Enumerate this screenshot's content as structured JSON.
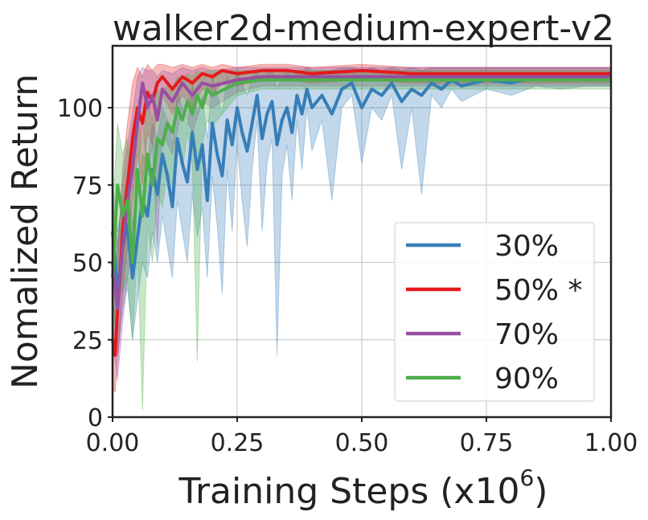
{
  "chart_data": {
    "type": "line",
    "title": "walker2d-medium-expert-v2",
    "xlabel": "Training Steps (x10",
    "xlabel_exp": "6",
    "xlabel_close": ")",
    "ylabel": "Nomalized Return",
    "xlim": [
      0,
      1.0
    ],
    "ylim": [
      0,
      120
    ],
    "xticks": [
      0.0,
      0.25,
      0.5,
      0.75,
      1.0
    ],
    "xtick_labels": [
      "0.00",
      "0.25",
      "0.50",
      "0.75",
      "1.00"
    ],
    "yticks": [
      0,
      25,
      50,
      75,
      100
    ],
    "ytick_labels": [
      "0",
      "25",
      "50",
      "75",
      "100"
    ],
    "grid": true,
    "legend_position": "bottom-right",
    "series": [
      {
        "name": "30%",
        "color": "#377eb8",
        "x": [
          0.0,
          0.01,
          0.02,
          0.03,
          0.04,
          0.05,
          0.06,
          0.07,
          0.08,
          0.09,
          0.1,
          0.11,
          0.12,
          0.13,
          0.14,
          0.15,
          0.16,
          0.17,
          0.18,
          0.19,
          0.2,
          0.21,
          0.22,
          0.23,
          0.24,
          0.25,
          0.26,
          0.27,
          0.28,
          0.29,
          0.3,
          0.31,
          0.32,
          0.33,
          0.34,
          0.35,
          0.36,
          0.37,
          0.38,
          0.39,
          0.4,
          0.42,
          0.44,
          0.46,
          0.48,
          0.5,
          0.52,
          0.54,
          0.56,
          0.58,
          0.6,
          0.62,
          0.64,
          0.66,
          0.68,
          0.7,
          0.75,
          0.8,
          0.85,
          0.9,
          0.95,
          1.0
        ],
        "y": [
          60,
          40,
          55,
          62,
          45,
          58,
          70,
          65,
          80,
          72,
          85,
          78,
          68,
          90,
          82,
          76,
          92,
          80,
          88,
          70,
          95,
          85,
          78,
          96,
          88,
          100,
          92,
          86,
          95,
          104,
          90,
          98,
          102,
          88,
          96,
          100,
          92,
          104,
          98,
          106,
          100,
          104,
          98,
          106,
          108,
          100,
          106,
          104,
          108,
          102,
          106,
          104,
          108,
          106,
          109,
          107,
          109,
          108,
          110,
          109,
          110,
          110
        ],
        "upper": [
          75,
          60,
          70,
          78,
          62,
          75,
          85,
          82,
          95,
          90,
          100,
          96,
          88,
          105,
          100,
          94,
          108,
          98,
          104,
          90,
          110,
          104,
          98,
          110,
          106,
          112,
          108,
          104,
          110,
          112,
          108,
          112,
          112,
          106,
          110,
          112,
          110,
          112,
          112,
          113,
          112,
          112,
          112,
          113,
          113,
          112,
          113,
          112,
          113,
          112,
          113,
          112,
          113,
          113,
          113,
          113,
          113,
          113,
          113,
          113,
          113,
          113
        ],
        "lower": [
          40,
          20,
          35,
          42,
          25,
          38,
          50,
          45,
          60,
          50,
          65,
          55,
          45,
          70,
          60,
          50,
          72,
          58,
          68,
          45,
          78,
          62,
          40,
          80,
          60,
          88,
          70,
          55,
          80,
          96,
          60,
          82,
          90,
          20,
          78,
          88,
          70,
          96,
          80,
          100,
          86,
          96,
          70,
          100,
          104,
          82,
          100,
          96,
          104,
          80,
          100,
          72,
          104,
          100,
          106,
          102,
          106,
          104,
          107,
          106,
          107,
          107
        ]
      },
      {
        "name": "50% *",
        "color": "#e41a1c",
        "x": [
          0.0,
          0.005,
          0.01,
          0.015,
          0.02,
          0.03,
          0.04,
          0.05,
          0.06,
          0.07,
          0.08,
          0.09,
          0.1,
          0.12,
          0.14,
          0.16,
          0.18,
          0.2,
          0.22,
          0.25,
          0.3,
          0.35,
          0.4,
          0.5,
          0.6,
          0.7,
          0.8,
          0.9,
          1.0
        ],
        "y": [
          25,
          20,
          35,
          45,
          60,
          75,
          90,
          100,
          95,
          105,
          102,
          108,
          110,
          106,
          110,
          108,
          111,
          110,
          112,
          111,
          112,
          112,
          111,
          112,
          111,
          111,
          111,
          111,
          111
        ],
        "upper": [
          45,
          40,
          55,
          65,
          80,
          95,
          108,
          113,
          110,
          114,
          112,
          114,
          114,
          113,
          114,
          113,
          114,
          113,
          114,
          113,
          114,
          114,
          113,
          114,
          113,
          113,
          113,
          113,
          113
        ],
        "lower": [
          10,
          8,
          18,
          28,
          40,
          55,
          70,
          85,
          75,
          92,
          88,
          100,
          104,
          98,
          104,
          100,
          106,
          104,
          108,
          107,
          109,
          109,
          108,
          109,
          108,
          108,
          108,
          108,
          108
        ]
      },
      {
        "name": "70%",
        "color": "#984ea3",
        "x": [
          0.0,
          0.01,
          0.02,
          0.03,
          0.04,
          0.05,
          0.06,
          0.07,
          0.08,
          0.09,
          0.1,
          0.12,
          0.14,
          0.16,
          0.18,
          0.2,
          0.25,
          0.3,
          0.4,
          0.5,
          0.6,
          0.7,
          0.8,
          0.9,
          1.0
        ],
        "y": [
          50,
          35,
          55,
          70,
          80,
          95,
          108,
          100,
          104,
          96,
          106,
          102,
          108,
          104,
          108,
          107,
          109,
          110,
          110,
          110,
          110,
          110,
          110,
          110,
          110
        ],
        "upper": [
          70,
          55,
          75,
          88,
          98,
          110,
          113,
          112,
          112,
          110,
          112,
          111,
          113,
          112,
          113,
          112,
          113,
          113,
          113,
          113,
          113,
          113,
          113,
          113,
          113
        ],
        "lower": [
          25,
          12,
          30,
          45,
          55,
          75,
          95,
          78,
          88,
          55,
          92,
          85,
          100,
          92,
          102,
          100,
          105,
          107,
          107,
          107,
          107,
          107,
          107,
          107,
          107
        ]
      },
      {
        "name": "90%",
        "color": "#4daf4a",
        "x": [
          0.0,
          0.01,
          0.02,
          0.03,
          0.04,
          0.05,
          0.06,
          0.07,
          0.08,
          0.09,
          0.1,
          0.11,
          0.12,
          0.13,
          0.14,
          0.15,
          0.16,
          0.17,
          0.18,
          0.19,
          0.2,
          0.25,
          0.3,
          0.4,
          0.5,
          0.6,
          0.7,
          0.8,
          0.9,
          1.0
        ],
        "y": [
          45,
          75,
          65,
          70,
          50,
          80,
          65,
          85,
          75,
          90,
          88,
          95,
          92,
          100,
          96,
          102,
          98,
          104,
          100,
          106,
          104,
          108,
          109,
          109,
          109,
          109,
          109,
          109,
          109,
          109
        ],
        "upper": [
          65,
          95,
          85,
          90,
          72,
          98,
          88,
          102,
          96,
          106,
          104,
          108,
          106,
          110,
          109,
          111,
          110,
          112,
          111,
          112,
          112,
          112,
          112,
          112,
          112,
          112,
          112,
          112,
          112,
          112
        ],
        "lower": [
          20,
          50,
          40,
          45,
          25,
          55,
          2,
          62,
          50,
          72,
          68,
          80,
          75,
          88,
          80,
          92,
          82,
          18,
          88,
          96,
          94,
          104,
          106,
          106,
          106,
          106,
          106,
          106,
          106,
          106
        ]
      }
    ]
  }
}
